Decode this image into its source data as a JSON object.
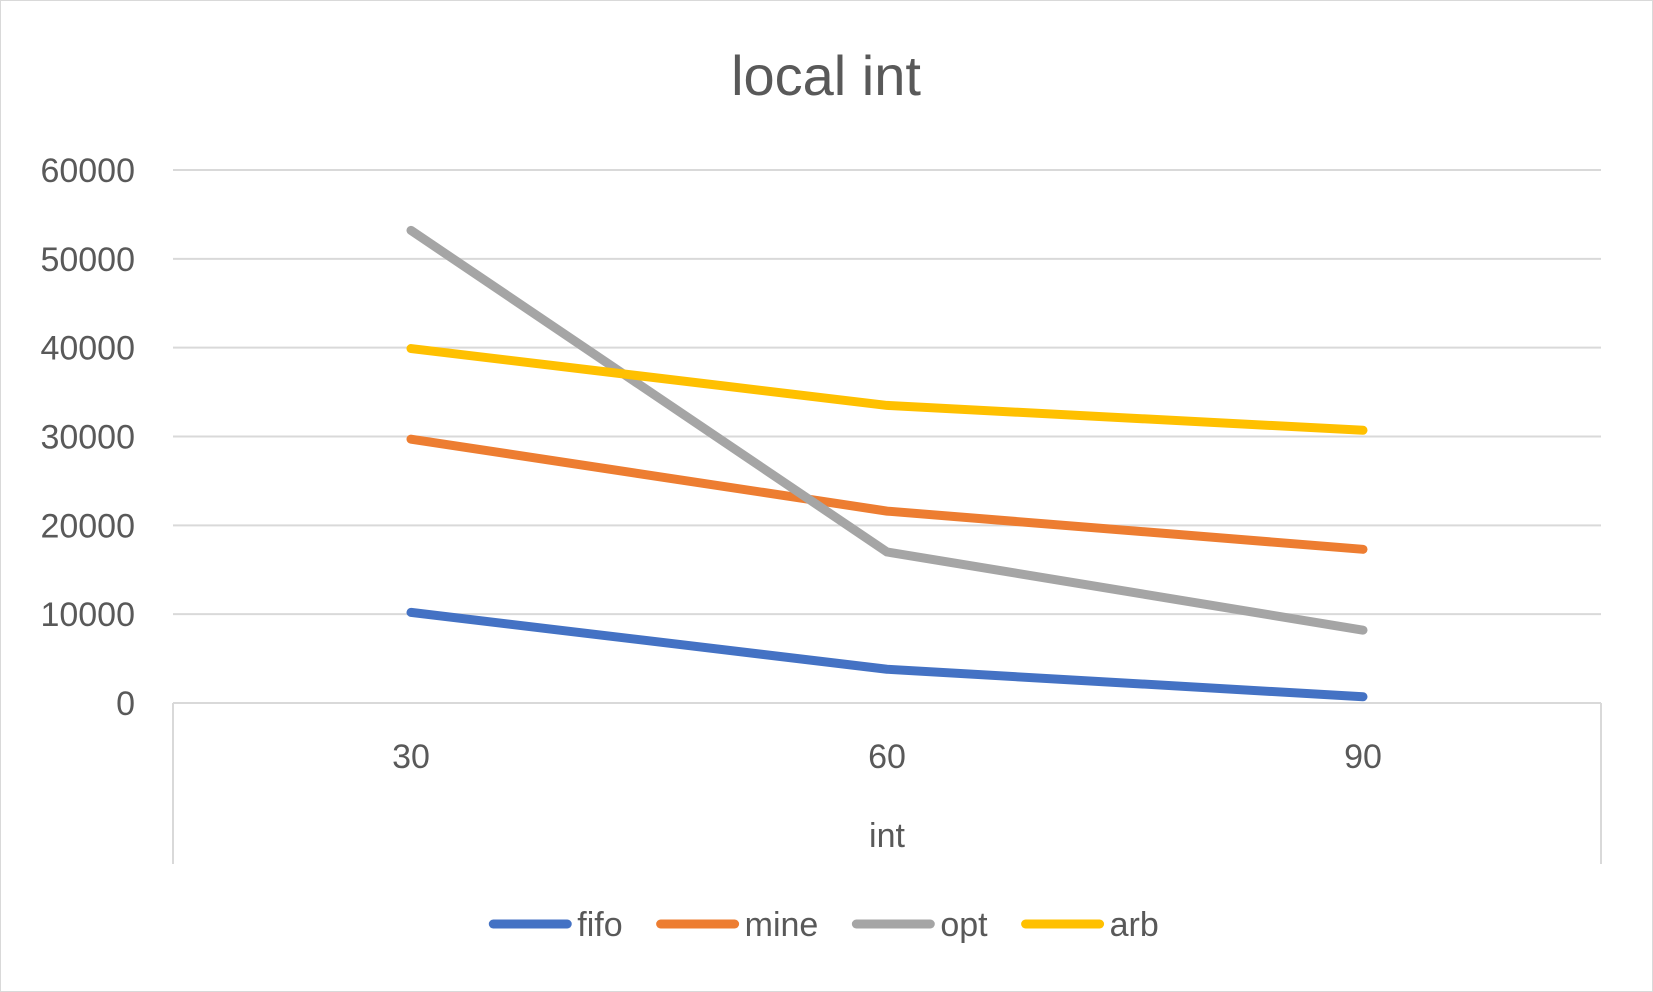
{
  "chart_data": {
    "type": "line",
    "title": "local int",
    "xlabel": "int",
    "ylabel": "",
    "categories": [
      "30",
      "60",
      "90"
    ],
    "ylim": [
      0,
      60000
    ],
    "yticks": [
      0,
      10000,
      20000,
      30000,
      40000,
      50000,
      60000
    ],
    "grid": true,
    "legend_position": "bottom",
    "series": [
      {
        "name": "fifo",
        "color": "#4472c4",
        "values": [
          10200,
          3800,
          700
        ]
      },
      {
        "name": "mine",
        "color": "#ed7d31",
        "values": [
          29700,
          21600,
          17300
        ]
      },
      {
        "name": "opt",
        "color": "#a5a5a5",
        "values": [
          53200,
          17000,
          8200
        ]
      },
      {
        "name": "arb",
        "color": "#ffc000",
        "values": [
          39900,
          33500,
          30700
        ]
      }
    ]
  }
}
